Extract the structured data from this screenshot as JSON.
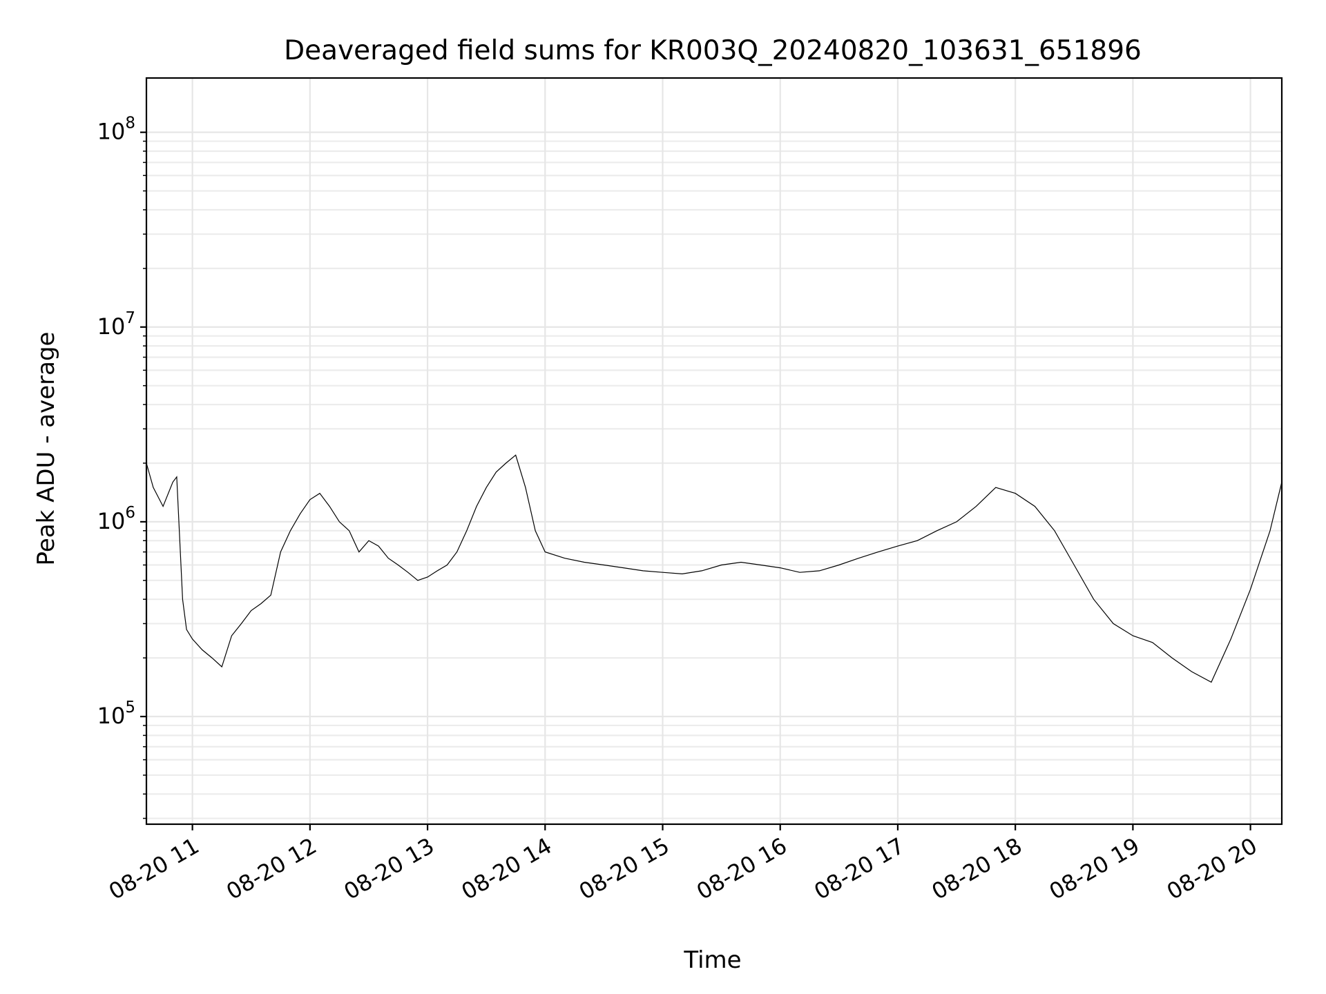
{
  "chart_data": {
    "type": "line",
    "title": "Deaveraged field sums for KR003Q_20240820_103631_651896",
    "xlabel": "Time",
    "ylabel": "Peak ADU - average",
    "yscale": "log",
    "ylim": [
      28000,
      190000000
    ],
    "xlim": [
      "2024-08-20T10:36:31",
      "2024-08-20T20:16:00"
    ],
    "grid": true,
    "legend": "none",
    "line_color": "#000000",
    "x_ticks": [
      {
        "time": "2024-08-20T11:00",
        "label": "08-20 11"
      },
      {
        "time": "2024-08-20T12:00",
        "label": "08-20 12"
      },
      {
        "time": "2024-08-20T13:00",
        "label": "08-20 13"
      },
      {
        "time": "2024-08-20T14:00",
        "label": "08-20 14"
      },
      {
        "time": "2024-08-20T15:00",
        "label": "08-20 15"
      },
      {
        "time": "2024-08-20T16:00",
        "label": "08-20 16"
      },
      {
        "time": "2024-08-20T17:00",
        "label": "08-20 17"
      },
      {
        "time": "2024-08-20T18:00",
        "label": "08-20 18"
      },
      {
        "time": "2024-08-20T19:00",
        "label": "08-20 19"
      },
      {
        "time": "2024-08-20T20:00",
        "label": "08-20 20"
      }
    ],
    "y_ticks": [
      {
        "value": 100000,
        "base": "10",
        "exp": "5"
      },
      {
        "value": 1000000,
        "base": "10",
        "exp": "6"
      },
      {
        "value": 10000000,
        "base": "10",
        "exp": "7"
      },
      {
        "value": 100000000,
        "base": "10",
        "exp": "8"
      }
    ],
    "series": [
      {
        "x": [
          "2024-08-20T10:36:31",
          "2024-08-20T10:40",
          "2024-08-20T10:45",
          "2024-08-20T10:50",
          "2024-08-20T10:52",
          "2024-08-20T10:55",
          "2024-08-20T10:57",
          "2024-08-20T11:00",
          "2024-08-20T11:05",
          "2024-08-20T11:10",
          "2024-08-20T11:15",
          "2024-08-20T11:20",
          "2024-08-20T11:25",
          "2024-08-20T11:30",
          "2024-08-20T11:35",
          "2024-08-20T11:40",
          "2024-08-20T11:45",
          "2024-08-20T11:50",
          "2024-08-20T11:55",
          "2024-08-20T12:00",
          "2024-08-20T12:05",
          "2024-08-20T12:10",
          "2024-08-20T12:15",
          "2024-08-20T12:20",
          "2024-08-20T12:25",
          "2024-08-20T12:30",
          "2024-08-20T12:35",
          "2024-08-20T12:40",
          "2024-08-20T12:45",
          "2024-08-20T12:50",
          "2024-08-20T12:55",
          "2024-08-20T13:00",
          "2024-08-20T13:05",
          "2024-08-20T13:10",
          "2024-08-20T13:15",
          "2024-08-20T13:20",
          "2024-08-20T13:25",
          "2024-08-20T13:30",
          "2024-08-20T13:35",
          "2024-08-20T13:40",
          "2024-08-20T13:45",
          "2024-08-20T13:50",
          "2024-08-20T13:55",
          "2024-08-20T14:00",
          "2024-08-20T14:10",
          "2024-08-20T14:20",
          "2024-08-20T14:30",
          "2024-08-20T14:40",
          "2024-08-20T14:50",
          "2024-08-20T15:00",
          "2024-08-20T15:10",
          "2024-08-20T15:20",
          "2024-08-20T15:30",
          "2024-08-20T15:40",
          "2024-08-20T15:50",
          "2024-08-20T16:00",
          "2024-08-20T16:10",
          "2024-08-20T16:20",
          "2024-08-20T16:30",
          "2024-08-20T16:40",
          "2024-08-20T16:50",
          "2024-08-20T17:00",
          "2024-08-20T17:10",
          "2024-08-20T17:20",
          "2024-08-20T17:30",
          "2024-08-20T17:40",
          "2024-08-20T17:50",
          "2024-08-20T18:00",
          "2024-08-20T18:10",
          "2024-08-20T18:20",
          "2024-08-20T18:30",
          "2024-08-20T18:40",
          "2024-08-20T18:50",
          "2024-08-20T19:00",
          "2024-08-20T19:10",
          "2024-08-20T19:20",
          "2024-08-20T19:30",
          "2024-08-20T19:40",
          "2024-08-20T19:50",
          "2024-08-20T20:00",
          "2024-08-20T20:10",
          "2024-08-20T20:16"
        ],
        "y": [
          2000000,
          1500000,
          1200000,
          1600000,
          1700000,
          400000,
          280000,
          250000,
          220000,
          200000,
          180000,
          260000,
          300000,
          350000,
          380000,
          420000,
          700000,
          900000,
          1100000,
          1300000,
          1400000,
          1200000,
          1000000,
          900000,
          700000,
          800000,
          750000,
          650000,
          600000,
          550000,
          500000,
          520000,
          560000,
          600000,
          700000,
          900000,
          1200000,
          1500000,
          1800000,
          2000000,
          2200000,
          1500000,
          900000,
          700000,
          650000,
          620000,
          600000,
          580000,
          560000,
          550000,
          540000,
          560000,
          600000,
          620000,
          600000,
          580000,
          550000,
          560000,
          600000,
          650000,
          700000,
          750000,
          800000,
          900000,
          1000000,
          1200000,
          1500000,
          1400000,
          1200000,
          900000,
          600000,
          400000,
          300000,
          260000,
          240000,
          200000,
          170000,
          150000,
          250000,
          450000,
          900000,
          1600000
        ]
      }
    ]
  }
}
